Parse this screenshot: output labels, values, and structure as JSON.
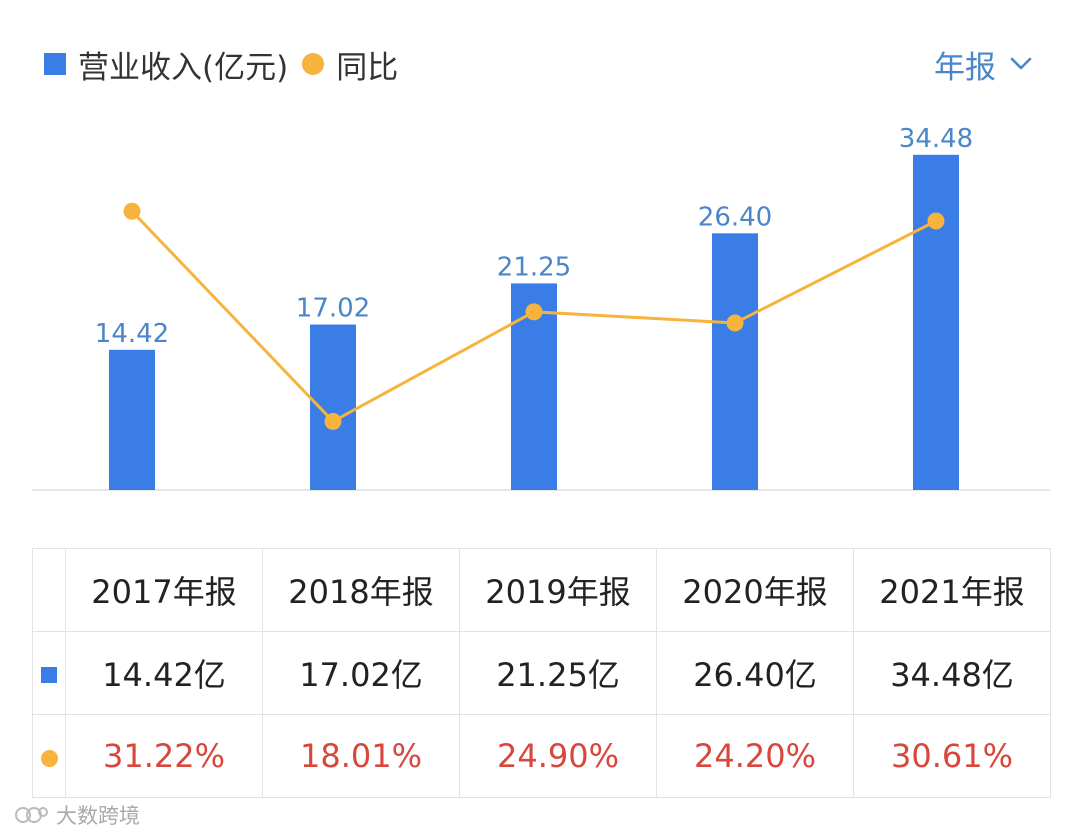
{
  "legend": {
    "bar_label": "营业收入(亿元)",
    "line_label": "同比"
  },
  "period_selector": {
    "label": "年报"
  },
  "chart_data": {
    "type": "bar",
    "categories": [
      "2017年报",
      "2018年报",
      "2019年报",
      "2020年报",
      "2021年报"
    ],
    "series": [
      {
        "name": "营业收入(亿元)",
        "type": "bar",
        "values": [
          14.42,
          17.02,
          21.25,
          26.4,
          34.48
        ],
        "labels": [
          "14.42",
          "17.02",
          "21.25",
          "26.40",
          "34.48"
        ],
        "color": "#3a7de6"
      },
      {
        "name": "同比",
        "type": "line",
        "values": [
          31.22,
          18.01,
          24.9,
          24.2,
          30.61
        ],
        "color": "#f6b33d"
      }
    ],
    "bar_ylim": [
      0,
      36
    ],
    "line_ylim": [
      13.7,
      35.7
    ]
  },
  "table": {
    "headers": [
      "2017年报",
      "2018年报",
      "2019年报",
      "2020年报",
      "2021年报"
    ],
    "revenue": [
      "14.42亿",
      "17.02亿",
      "21.25亿",
      "26.40亿",
      "34.48亿"
    ],
    "growth": [
      "31.22%",
      "18.01%",
      "24.90%",
      "24.20%",
      "30.61%"
    ]
  },
  "watermark": {
    "text": "大数跨境"
  },
  "colors": {
    "bar": "#3a7de6",
    "line": "#f6b33d",
    "label": "#4a86c8",
    "pct": "#d8463c"
  }
}
